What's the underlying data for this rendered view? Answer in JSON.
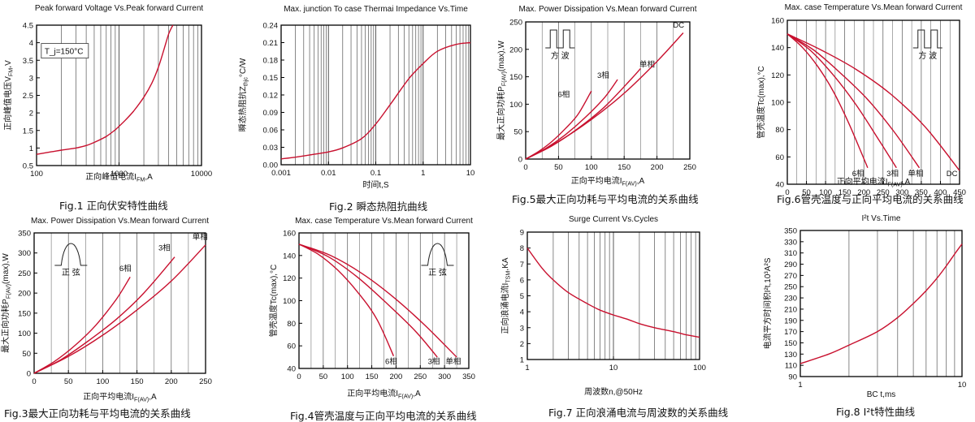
{
  "chart_data": [
    {
      "id": "fig1",
      "type": "line",
      "title": "Peak forward Voltage Vs.Peak forward Current",
      "caption": "Fig.1 正向伏安特性曲线",
      "ylabel": "正向峰值电压V_{FM},V",
      "xlabel": "正向峰值电流I_{FM},A",
      "xscale": "log",
      "xlim": [
        100,
        10000
      ],
      "ylim": [
        0.5,
        4.5
      ],
      "x_ticks": [
        100,
        1000,
        10000
      ],
      "x_tick_labels": [
        "100",
        "1000",
        "10000"
      ],
      "y_ticks": [
        0.5,
        1,
        1.5,
        2,
        2.5,
        3,
        3.5,
        4,
        4.5
      ],
      "y_tick_labels": [
        "0.5",
        "1",
        "1.5",
        "2",
        "2.5",
        "3",
        "3.5",
        "4",
        "4.5"
      ],
      "grid": "x-log-vertical",
      "annotations": [
        {
          "text": "T_j=150°C",
          "x": 125,
          "y": 3.7,
          "boxed": true
        }
      ],
      "series": [
        {
          "name": "",
          "x": [
            100,
            150,
            200,
            300,
            400,
            500,
            700,
            900,
            1000,
            1200,
            1500,
            2000,
            2500,
            3000,
            3500,
            4000,
            4500
          ],
          "y": [
            0.82,
            0.89,
            0.94,
            1.0,
            1.07,
            1.16,
            1.33,
            1.52,
            1.62,
            1.8,
            2.05,
            2.45,
            2.85,
            3.3,
            3.8,
            4.25,
            4.5
          ]
        }
      ]
    },
    {
      "id": "fig2",
      "type": "line",
      "title": "Max. junction To case Thermai Impedance Vs.Time",
      "caption": "Fig.2  瞬态热阻抗曲线",
      "ylabel": "瞬态热阻抗Z_{thjc}°C/W",
      "xlabel": "时间t,S",
      "xscale": "log",
      "xlim": [
        0.001,
        10
      ],
      "ylim": [
        0,
        0.24
      ],
      "x_ticks": [
        0.001,
        0.01,
        0.1,
        1,
        10
      ],
      "x_tick_labels": [
        "0.001",
        "0.01",
        "0.1",
        "1",
        "10"
      ],
      "y_ticks": [
        0,
        0.03,
        0.06,
        0.09,
        0.12,
        0.15,
        0.18,
        0.21,
        0.24
      ],
      "y_tick_labels": [
        "0.00",
        "0.03",
        "0.06",
        "0.09",
        "0.12",
        "0.15",
        "0.18",
        "0.21",
        "0.24"
      ],
      "grid": "x-log-vertical",
      "series": [
        {
          "name": "",
          "x": [
            0.001,
            0.002,
            0.005,
            0.01,
            0.02,
            0.05,
            0.1,
            0.2,
            0.5,
            1,
            2,
            5,
            10
          ],
          "y": [
            0.01,
            0.013,
            0.018,
            0.022,
            0.029,
            0.045,
            0.07,
            0.103,
            0.148,
            0.174,
            0.195,
            0.207,
            0.21
          ]
        }
      ]
    },
    {
      "id": "fig5",
      "type": "line",
      "title": "Max. Power Dissipation Vs.Mean forward Current",
      "caption": "Fig.5最大正向功耗与平均电流的关系曲线",
      "ylabel": "最大正向功耗P_{F(AV)}(max),W",
      "xlabel": "正向平均电流I_{F(AV)},A",
      "xlim": [
        0,
        250
      ],
      "ylim": [
        0,
        250
      ],
      "x_ticks": [
        0,
        50,
        100,
        150,
        200,
        250
      ],
      "x_tick_labels": [
        "0",
        "50",
        "100",
        "150",
        "200",
        "250"
      ],
      "y_ticks": [
        0,
        50,
        100,
        150,
        200,
        250
      ],
      "y_tick_labels": [
        "0",
        "50",
        "100",
        "150",
        "200",
        "250"
      ],
      "grid": "vertical",
      "inset": {
        "shape": "square-wave",
        "label": "方    波"
      },
      "series": [
        {
          "name": "6相",
          "x": [
            0,
            20,
            40,
            60,
            80,
            100
          ],
          "y": [
            0,
            14,
            32,
            55,
            82,
            124
          ],
          "label_at": [
            58,
            113
          ]
        },
        {
          "name": "3相",
          "x": [
            0,
            30,
            60,
            90,
            120,
            140
          ],
          "y": [
            0,
            19,
            44,
            75,
            112,
            145
          ],
          "label_at": [
            118,
            148
          ]
        },
        {
          "name": "单相",
          "x": [
            0,
            40,
            80,
            120,
            160,
            175
          ],
          "y": [
            0,
            24,
            56,
            95,
            145,
            165
          ],
          "label_at": [
            185,
            168
          ]
        },
        {
          "name": "DC",
          "x": [
            0,
            50,
            100,
            150,
            200,
            240
          ],
          "y": [
            0,
            32,
            72,
            120,
            178,
            230
          ],
          "label_at": [
            233,
            240
          ]
        }
      ]
    },
    {
      "id": "fig6",
      "type": "line",
      "title": "Max. case Temperature Vs.Mean forward Current",
      "caption": "Fig.6管壳温度与正向平均电流的关系曲线",
      "ylabel": "管壳温度Tc(max),°C",
      "xlabel": "正向平均电流I_{F(AV)},A",
      "xlim": [
        0,
        450
      ],
      "ylim": [
        40,
        160
      ],
      "x_ticks": [
        0,
        50,
        100,
        150,
        200,
        250,
        300,
        350,
        400,
        450
      ],
      "x_tick_labels": [
        "0",
        "50",
        "100",
        "150",
        "200",
        "250",
        "300",
        "350",
        "400",
        "450"
      ],
      "y_ticks": [
        40,
        60,
        80,
        100,
        120,
        140,
        160
      ],
      "y_tick_labels": [
        "40",
        "60",
        "80",
        "100",
        "120",
        "140",
        "160"
      ],
      "grid": "vertical",
      "inset": {
        "shape": "square-wave",
        "label": "方    波"
      },
      "series": [
        {
          "name": "6相",
          "x": [
            0,
            40,
            80,
            120,
            160,
            195,
            210
          ],
          "y": [
            150,
            140,
            126,
            108,
            85,
            62,
            52
          ],
          "label_at": [
            185,
            46
          ]
        },
        {
          "name": "3相",
          "x": [
            0,
            60,
            120,
            180,
            240,
            285
          ],
          "y": [
            150,
            138,
            120,
            98,
            72,
            52
          ],
          "label_at": [
            275,
            46
          ]
        },
        {
          "name": "单相",
          "x": [
            0,
            70,
            140,
            210,
            280,
            345
          ],
          "y": [
            150,
            138,
            121,
            102,
            78,
            52
          ],
          "label_at": [
            335,
            46
          ]
        },
        {
          "name": "DC",
          "x": [
            0,
            90,
            180,
            270,
            360,
            450
          ],
          "y": [
            150,
            138,
            124,
            106,
            82,
            50
          ],
          "label_at": [
            430,
            46
          ]
        }
      ]
    },
    {
      "id": "fig3",
      "type": "line",
      "title": "Max. Power Dissipation Vs.Mean forward Current",
      "caption": "Fig.3最大正向功耗与平均电流的关系曲线",
      "ylabel": "最大正向功耗P_{F(AV)}(max),W",
      "xlabel": "正向平均电流I_{F(AV)},A",
      "xlim": [
        0,
        250
      ],
      "ylim": [
        0,
        350
      ],
      "x_ticks": [
        0,
        50,
        100,
        150,
        200,
        250
      ],
      "x_tick_labels": [
        "0",
        "50",
        "100",
        "150",
        "200",
        "250"
      ],
      "y_ticks": [
        0,
        50,
        100,
        150,
        200,
        250,
        300,
        350
      ],
      "y_tick_labels": [
        "0",
        "50",
        "100",
        "150",
        "200",
        "250",
        "300",
        "350"
      ],
      "grid": "vertical",
      "inset": {
        "shape": "half-sine",
        "label": "正    弦"
      },
      "series": [
        {
          "name": "6相",
          "x": [
            0,
            30,
            60,
            90,
            120,
            140
          ],
          "y": [
            0,
            30,
            70,
            120,
            185,
            240
          ],
          "label_at": [
            133,
            255
          ]
        },
        {
          "name": "3相",
          "x": [
            0,
            40,
            80,
            120,
            160,
            205
          ],
          "y": [
            0,
            35,
            82,
            135,
            200,
            290
          ],
          "label_at": [
            190,
            306
          ]
        },
        {
          "name": "单相",
          "x": [
            0,
            50,
            100,
            150,
            200,
            250
          ],
          "y": [
            0,
            42,
            95,
            158,
            230,
            320
          ],
          "label_at": [
            242,
            334
          ]
        }
      ]
    },
    {
      "id": "fig4",
      "type": "line",
      "title": "Max. case Temperature Vs.Mean forward Current",
      "caption": "Fig.4管壳温度与正向平均电流的关系曲线",
      "ylabel": "管壳温度Tc(max),°C",
      "xlabel": "正向平均电流I_{F(AV)},A",
      "xlim": [
        0,
        350
      ],
      "ylim": [
        40,
        160
      ],
      "x_ticks": [
        0,
        50,
        100,
        150,
        200,
        250,
        300,
        350
      ],
      "x_tick_labels": [
        "0",
        "50",
        "100",
        "150",
        "200",
        "250",
        "300",
        "350"
      ],
      "y_ticks": [
        40,
        60,
        80,
        100,
        120,
        140,
        160
      ],
      "y_tick_labels": [
        "40",
        "60",
        "80",
        "100",
        "120",
        "140",
        "160"
      ],
      "grid": "vertical",
      "inset": {
        "shape": "half-sine",
        "label": "正    弦"
      },
      "series": [
        {
          "name": "6相",
          "x": [
            0,
            40,
            80,
            120,
            160,
            195
          ],
          "y": [
            150,
            141,
            127,
            108,
            84,
            51
          ],
          "label_at": [
            190,
            44
          ]
        },
        {
          "name": "3相",
          "x": [
            0,
            60,
            120,
            180,
            240,
            285
          ],
          "y": [
            150,
            139,
            121,
            98,
            73,
            50
          ],
          "label_at": [
            278,
            44
          ]
        },
        {
          "name": "单相",
          "x": [
            0,
            65,
            130,
            195,
            260,
            325
          ],
          "y": [
            150,
            140,
            124,
            103,
            78,
            50
          ],
          "label_at": [
            318,
            44
          ]
        }
      ]
    },
    {
      "id": "fig7",
      "type": "line",
      "title": "Surge Current Vs.Cycles",
      "caption": "Fig.7 正向浪涌电流与周波数的关系曲线",
      "ylabel": "正向浪涌电流I_{TSM},KA",
      "xlabel": "周波数n,@50Hz",
      "xscale": "log",
      "xlim": [
        1,
        100
      ],
      "ylim": [
        1,
        9
      ],
      "x_ticks": [
        1,
        10,
        100
      ],
      "x_tick_labels": [
        "1",
        "10",
        "100"
      ],
      "y_ticks": [
        1,
        2,
        3,
        4,
        5,
        6,
        7,
        8,
        9
      ],
      "y_tick_labels": [
        "1",
        "2",
        "3",
        "4",
        "5",
        "6",
        "7",
        "8",
        "9"
      ],
      "grid": "x-log-vertical",
      "series": [
        {
          "name": "",
          "x": [
            1,
            1.5,
            2,
            3,
            5,
            7,
            10,
            15,
            20,
            30,
            50,
            70,
            100
          ],
          "y": [
            8.0,
            6.7,
            6.0,
            5.2,
            4.5,
            4.1,
            3.8,
            3.5,
            3.25,
            3.0,
            2.75,
            2.55,
            2.4
          ]
        }
      ]
    },
    {
      "id": "fig8",
      "type": "line",
      "title": "I²t Vs.Time",
      "caption": "Fig.8 I²t特性曲线",
      "ylabel": "电流平方时间积I²t,10³A²S",
      "xlabel": "BC    t,ms",
      "xscale": "log",
      "xlim": [
        1,
        10
      ],
      "ylim": [
        90,
        350
      ],
      "x_ticks": [
        1,
        10
      ],
      "x_tick_labels": [
        "1",
        "10"
      ],
      "y_ticks": [
        90,
        110,
        130,
        150,
        170,
        190,
        210,
        230,
        250,
        270,
        290,
        310,
        330,
        350
      ],
      "y_tick_labels": [
        "90",
        "110",
        "130",
        "150",
        "170",
        "190",
        "210",
        "230",
        "250",
        "270",
        "290",
        "310",
        "330",
        "350"
      ],
      "grid": "x-log-vertical",
      "series": [
        {
          "name": "",
          "x": [
            1,
            1.5,
            2,
            3,
            4,
            5,
            6,
            7,
            8,
            9,
            10
          ],
          "y": [
            113,
            130,
            146,
            170,
            195,
            220,
            243,
            265,
            287,
            308,
            326
          ]
        }
      ]
    }
  ],
  "style": {
    "curve_color": "#c8102e",
    "axis_color": "#000000",
    "grid_color": "#555555"
  }
}
